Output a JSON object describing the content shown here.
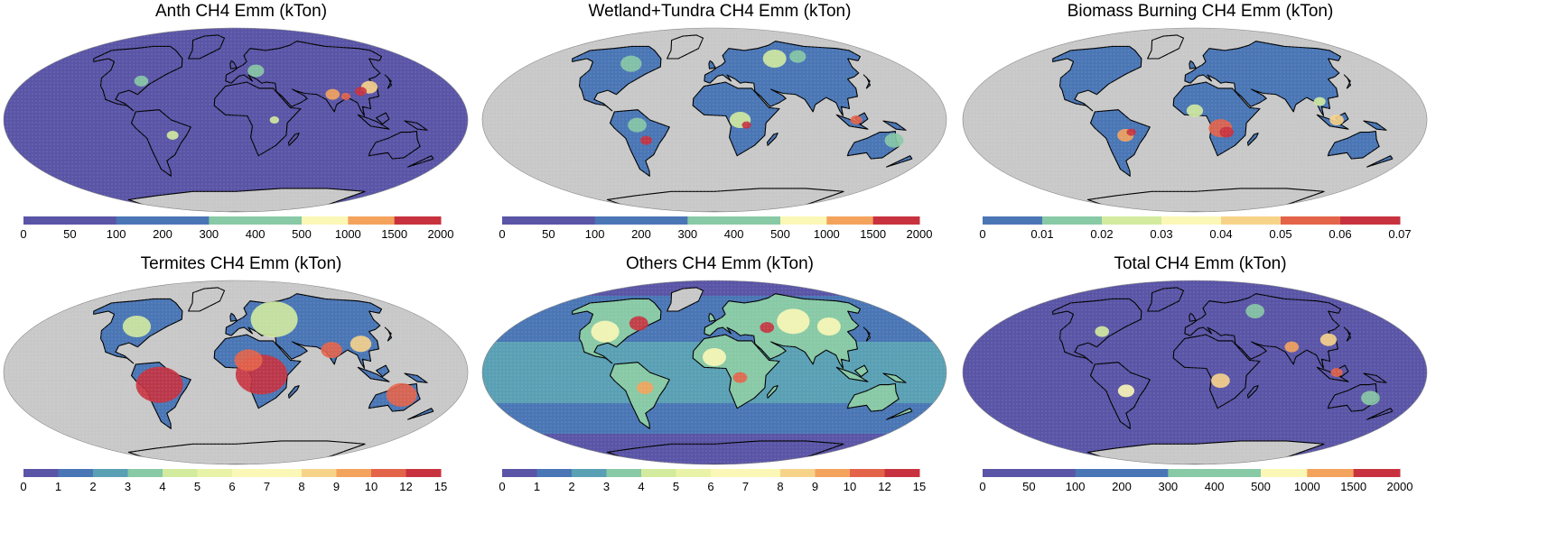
{
  "colors": {
    "ocean_gray": "#c8c8c8",
    "coast": "#000000",
    "palette": [
      "#5a55a6",
      "#4a76b5",
      "#5aa0b4",
      "#88c9a6",
      "#d2eb9e",
      "#fbf7b6",
      "#f7d38a",
      "#f4a35c",
      "#e4644a",
      "#c8323f"
    ]
  },
  "panels": [
    {
      "title": "Anth CH4 Emm (kTon)",
      "background": "purple",
      "ticks": [
        "0",
        "50",
        "100",
        "200",
        "300",
        "400",
        "500",
        "1000",
        "1500",
        "2000"
      ],
      "bins": [
        "#5a55a6",
        "#5a55a6",
        "#4a76b5",
        "#4a76b5",
        "#88c9a6",
        "#88c9a6",
        "#fbf7b6",
        "#f4a35c",
        "#c8323f"
      ]
    },
    {
      "title": "Wetland+Tundra CH4 Emm (kTon)",
      "background": "gray",
      "ticks": [
        "0",
        "50",
        "100",
        "200",
        "300",
        "400",
        "500",
        "1000",
        "1500",
        "2000"
      ],
      "bins": [
        "#5a55a6",
        "#5a55a6",
        "#4a76b5",
        "#4a76b5",
        "#88c9a6",
        "#88c9a6",
        "#fbf7b6",
        "#f4a35c",
        "#c8323f"
      ]
    },
    {
      "title": "Biomass Burning CH4 Emm (kTon)",
      "background": "gray",
      "ticks": [
        "0",
        "0.01",
        "0.02",
        "0.03",
        "0.04",
        "0.05",
        "0.06",
        "0.07"
      ],
      "bins": [
        "#4a76b5",
        "#88c9a6",
        "#d2eb9e",
        "#fbf7b6",
        "#f7d38a",
        "#e4644a",
        "#c8323f"
      ]
    },
    {
      "title": "Termites CH4 Emm (kTon)",
      "background": "gray",
      "ticks": [
        "0",
        "1",
        "2",
        "3",
        "4",
        "5",
        "6",
        "7",
        "8",
        "9",
        "10",
        "12",
        "15"
      ],
      "bins": [
        "#5a55a6",
        "#4a76b5",
        "#5aa0b4",
        "#88c9a6",
        "#d2eb9e",
        "#e8f3a8",
        "#fbf7b6",
        "#fbf7b6",
        "#f7d38a",
        "#f4a35c",
        "#e4644a",
        "#c8323f"
      ]
    },
    {
      "title": "Others CH4 Emm (kTon)",
      "background": "banded",
      "ticks": [
        "0",
        "1",
        "2",
        "3",
        "4",
        "5",
        "6",
        "7",
        "8",
        "9",
        "10",
        "12",
        "15"
      ],
      "bins": [
        "#5a55a6",
        "#4a76b5",
        "#5aa0b4",
        "#88c9a6",
        "#d2eb9e",
        "#e8f3a8",
        "#fbf7b6",
        "#fbf7b6",
        "#f7d38a",
        "#f4a35c",
        "#e4644a",
        "#c8323f"
      ]
    },
    {
      "title": "Total CH4 Emm (kTon)",
      "background": "purple",
      "ticks": [
        "0",
        "50",
        "100",
        "200",
        "300",
        "400",
        "500",
        "1000",
        "1500",
        "2000"
      ],
      "bins": [
        "#5a55a6",
        "#5a55a6",
        "#4a76b5",
        "#4a76b5",
        "#88c9a6",
        "#88c9a6",
        "#fbf7b6",
        "#f4a35c",
        "#c8323f"
      ]
    }
  ]
}
